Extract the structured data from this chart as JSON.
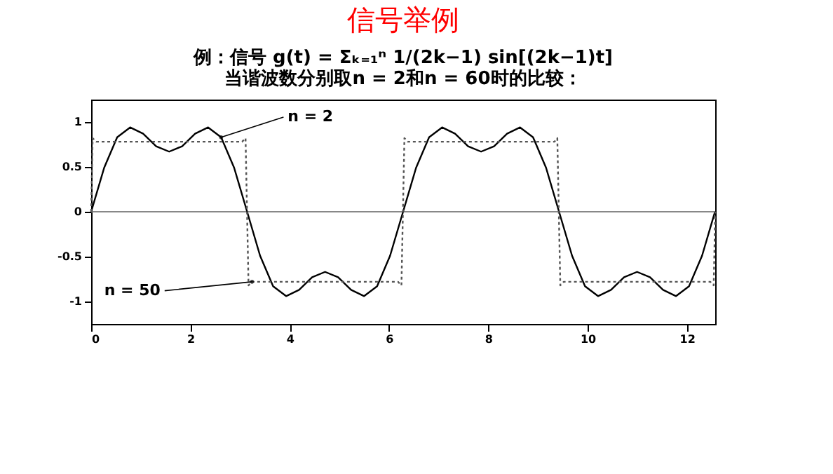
{
  "chart_data": {
    "type": "line",
    "title": "信号举例",
    "subtitle": [
      "例：信号   g(t) = Σₖ₌₁ⁿ 1/(2k−1) sin[(2k−1)t]",
      "当谐波数分别取n = 2和n = 60时的比较："
    ],
    "series": [
      {
        "color": "#000000",
        "line_style": "solid",
        "x": [
          0,
          0.262,
          0.524,
          0.785,
          1.047,
          1.309,
          1.571,
          1.833,
          2.094,
          2.356,
          2.618,
          2.88,
          3.142,
          3.403,
          3.665,
          3.927,
          4.189,
          4.451,
          4.712,
          4.974,
          5.236,
          5.498,
          5.76,
          6.021,
          6.283,
          6.545,
          6.807,
          7.069,
          7.33,
          7.592,
          7.854,
          8.116,
          8.378,
          8.639,
          8.901,
          9.163,
          9.425,
          9.687,
          9.948,
          10.21,
          10.472,
          10.734,
          10.996,
          11.257,
          11.519,
          11.781,
          12.043,
          12.305,
          12.566
        ],
        "values": [
          0,
          0.49,
          0.83,
          0.94,
          0.87,
          0.73,
          0.67,
          0.73,
          0.87,
          0.94,
          0.83,
          0.49,
          0,
          -0.49,
          -0.83,
          -0.94,
          -0.87,
          -0.73,
          -0.67,
          -0.73,
          -0.87,
          -0.94,
          -0.83,
          -0.49,
          0,
          0.49,
          0.83,
          0.94,
          0.87,
          0.73,
          0.67,
          0.73,
          0.87,
          0.94,
          0.83,
          0.49,
          0,
          -0.49,
          -0.83,
          -0.94,
          -0.87,
          -0.73,
          -0.67,
          -0.73,
          -0.87,
          -0.94,
          -0.83,
          -0.49,
          0
        ]
      },
      {
        "color": "#555555",
        "line_style": "dotted",
        "x": [
          0,
          0.03,
          0.1,
          3.04,
          3.11,
          3.14,
          3.17,
          3.24,
          6.18,
          6.25,
          6.28,
          6.31,
          6.38,
          9.33,
          9.39,
          9.42,
          9.45,
          9.52,
          12.47,
          12.54,
          12.57
        ],
        "values": [
          0,
          0.82,
          0.78,
          0.78,
          0.82,
          0,
          -0.82,
          -0.78,
          -0.78,
          -0.82,
          0,
          0.82,
          0.78,
          0.78,
          0.82,
          0,
          -0.82,
          -0.78,
          -0.78,
          -0.82,
          0
        ]
      }
    ],
    "xlim": [
      0,
      12.57
    ],
    "xticks": [
      0,
      2,
      4,
      6,
      8,
      10,
      12
    ],
    "ylim": [
      -1.25,
      1.25
    ],
    "yticks": [
      -1,
      -0.5,
      0,
      0.5,
      1
    ],
    "ref_lines": [
      {
        "axis": "y",
        "value": 0,
        "color": "#888888"
      }
    ],
    "annotations": [
      {
        "text": "n = 2",
        "x": 2.618,
        "y": 0.83
      },
      {
        "text": "n = 50",
        "x": 3.24,
        "y": -0.78
      }
    ],
    "grid": false,
    "legend": false
  }
}
